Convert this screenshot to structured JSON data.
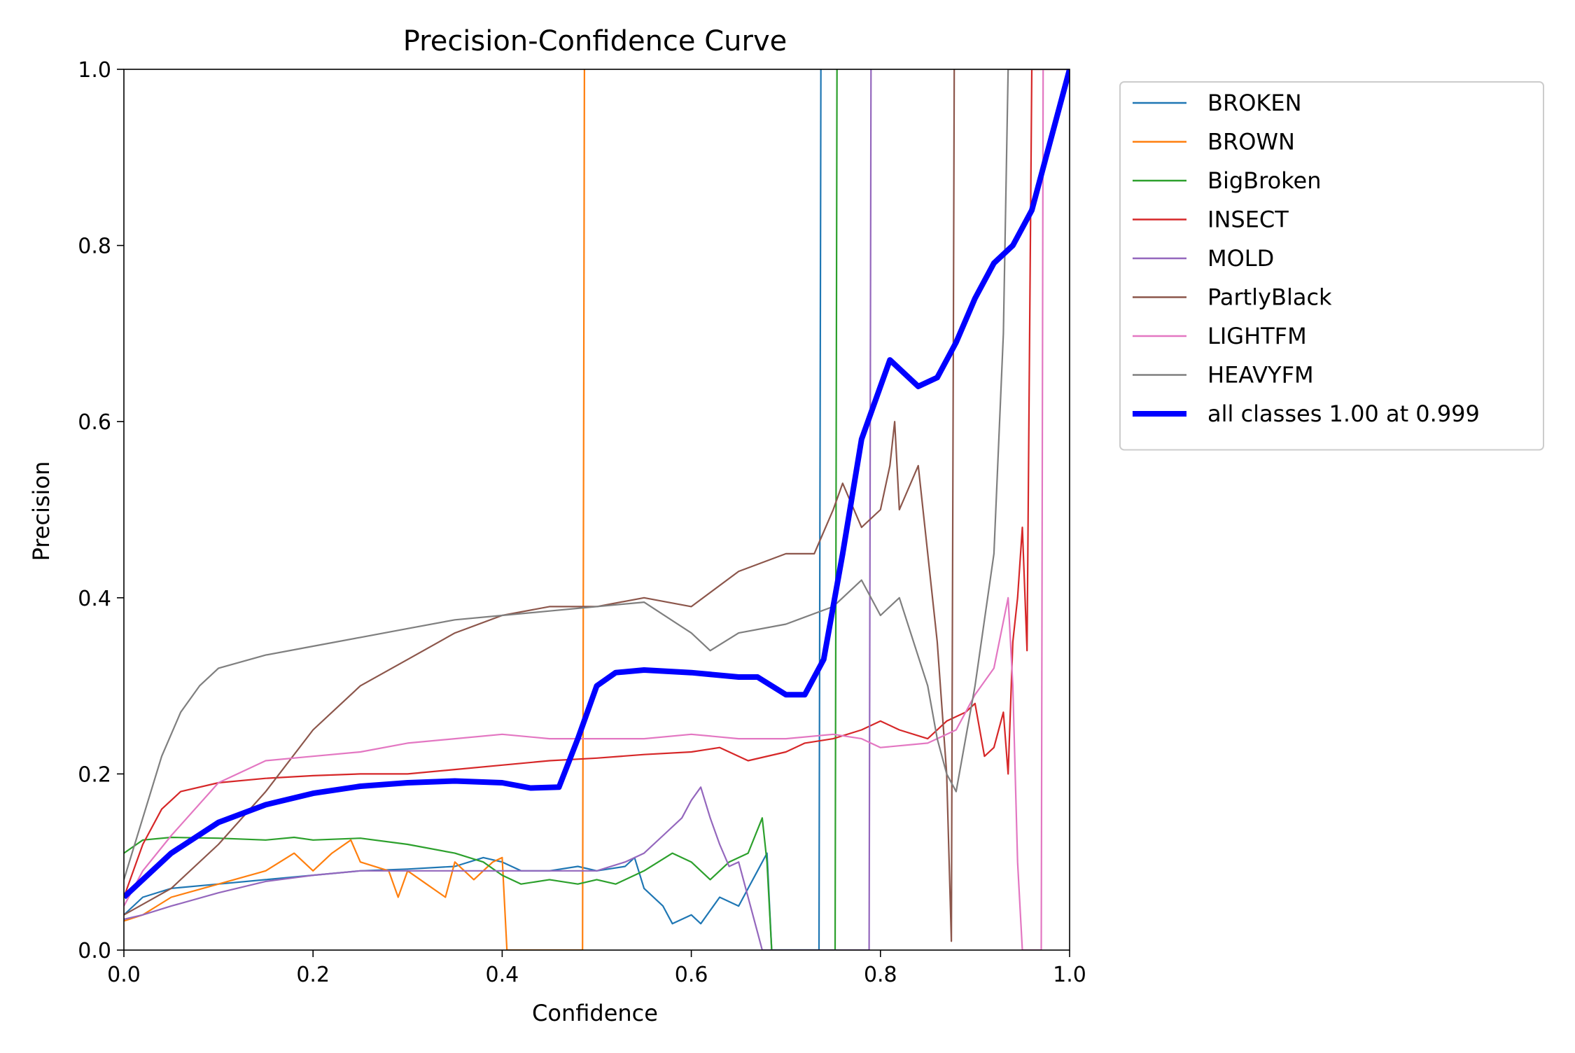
{
  "chart_data": {
    "type": "line",
    "title": "Precision-Confidence Curve",
    "xlabel": "Confidence",
    "ylabel": "Precision",
    "xlim": [
      0,
      1
    ],
    "ylim": [
      0,
      1
    ],
    "x_ticks": [
      "0.0",
      "0.2",
      "0.4",
      "0.6",
      "0.8",
      "1.0"
    ],
    "y_ticks": [
      "0.0",
      "0.2",
      "0.4",
      "0.6",
      "0.8",
      "1.0"
    ],
    "grid": false,
    "legend_position": "outside-upper-right",
    "series": [
      {
        "name": "BROKEN",
        "color": "#1f77b4",
        "line": "thin",
        "points": [
          [
            0,
            0.04
          ],
          [
            0.02,
            0.06
          ],
          [
            0.05,
            0.07
          ],
          [
            0.1,
            0.075
          ],
          [
            0.15,
            0.08
          ],
          [
            0.2,
            0.085
          ],
          [
            0.25,
            0.09
          ],
          [
            0.3,
            0.092
          ],
          [
            0.35,
            0.095
          ],
          [
            0.38,
            0.105
          ],
          [
            0.4,
            0.1
          ],
          [
            0.42,
            0.09
          ],
          [
            0.45,
            0.09
          ],
          [
            0.48,
            0.095
          ],
          [
            0.5,
            0.09
          ],
          [
            0.53,
            0.095
          ],
          [
            0.54,
            0.105
          ],
          [
            0.55,
            0.07
          ],
          [
            0.57,
            0.05
          ],
          [
            0.58,
            0.03
          ],
          [
            0.6,
            0.04
          ],
          [
            0.61,
            0.03
          ],
          [
            0.63,
            0.06
          ],
          [
            0.65,
            0.05
          ],
          [
            0.66,
            0.07
          ],
          [
            0.67,
            0.09
          ],
          [
            0.68,
            0.11
          ],
          [
            0.685,
            0
          ],
          [
            0.735,
            0
          ],
          [
            0.737,
            1
          ]
        ]
      },
      {
        "name": "BROWN",
        "color": "#ff7f0e",
        "line": "thin",
        "points": [
          [
            0,
            0.033
          ],
          [
            0.02,
            0.04
          ],
          [
            0.05,
            0.06
          ],
          [
            0.1,
            0.075
          ],
          [
            0.15,
            0.09
          ],
          [
            0.18,
            0.11
          ],
          [
            0.2,
            0.09
          ],
          [
            0.22,
            0.11
          ],
          [
            0.24,
            0.125
          ],
          [
            0.25,
            0.1
          ],
          [
            0.28,
            0.09
          ],
          [
            0.29,
            0.06
          ],
          [
            0.3,
            0.09
          ],
          [
            0.32,
            0.075
          ],
          [
            0.34,
            0.06
          ],
          [
            0.35,
            0.1
          ],
          [
            0.37,
            0.08
          ],
          [
            0.39,
            0.1
          ],
          [
            0.4,
            0.105
          ],
          [
            0.405,
            0
          ],
          [
            0.485,
            0
          ],
          [
            0.487,
            1
          ]
        ]
      },
      {
        "name": "BigBroken",
        "color": "#2ca02c",
        "line": "thin",
        "points": [
          [
            0,
            0.11
          ],
          [
            0.02,
            0.125
          ],
          [
            0.05,
            0.128
          ],
          [
            0.1,
            0.127
          ],
          [
            0.15,
            0.125
          ],
          [
            0.18,
            0.128
          ],
          [
            0.2,
            0.125
          ],
          [
            0.25,
            0.127
          ],
          [
            0.3,
            0.12
          ],
          [
            0.35,
            0.11
          ],
          [
            0.38,
            0.1
          ],
          [
            0.4,
            0.085
          ],
          [
            0.42,
            0.075
          ],
          [
            0.45,
            0.08
          ],
          [
            0.48,
            0.075
          ],
          [
            0.5,
            0.08
          ],
          [
            0.52,
            0.075
          ],
          [
            0.55,
            0.09
          ],
          [
            0.58,
            0.11
          ],
          [
            0.6,
            0.1
          ],
          [
            0.62,
            0.08
          ],
          [
            0.64,
            0.1
          ],
          [
            0.66,
            0.11
          ],
          [
            0.675,
            0.15
          ],
          [
            0.68,
            0.1
          ],
          [
            0.685,
            0
          ],
          [
            0.752,
            0
          ],
          [
            0.754,
            1
          ]
        ]
      },
      {
        "name": "INSECT",
        "color": "#d62728",
        "line": "thin",
        "points": [
          [
            0,
            0.06
          ],
          [
            0.02,
            0.12
          ],
          [
            0.04,
            0.16
          ],
          [
            0.06,
            0.18
          ],
          [
            0.1,
            0.19
          ],
          [
            0.15,
            0.195
          ],
          [
            0.2,
            0.198
          ],
          [
            0.25,
            0.2
          ],
          [
            0.3,
            0.2
          ],
          [
            0.35,
            0.205
          ],
          [
            0.4,
            0.21
          ],
          [
            0.45,
            0.215
          ],
          [
            0.5,
            0.218
          ],
          [
            0.55,
            0.222
          ],
          [
            0.6,
            0.225
          ],
          [
            0.63,
            0.23
          ],
          [
            0.66,
            0.215
          ],
          [
            0.7,
            0.225
          ],
          [
            0.72,
            0.235
          ],
          [
            0.75,
            0.24
          ],
          [
            0.78,
            0.25
          ],
          [
            0.8,
            0.26
          ],
          [
            0.82,
            0.25
          ],
          [
            0.85,
            0.24
          ],
          [
            0.87,
            0.26
          ],
          [
            0.89,
            0.27
          ],
          [
            0.9,
            0.28
          ],
          [
            0.91,
            0.22
          ],
          [
            0.92,
            0.23
          ],
          [
            0.93,
            0.27
          ],
          [
            0.935,
            0.2
          ],
          [
            0.94,
            0.35
          ],
          [
            0.945,
            0.4
          ],
          [
            0.95,
            0.48
          ],
          [
            0.955,
            0.34
          ],
          [
            0.96,
            1
          ],
          [
            1,
            1
          ]
        ]
      },
      {
        "name": "MOLD",
        "color": "#9467bd",
        "line": "thin",
        "points": [
          [
            0,
            0.035
          ],
          [
            0.02,
            0.04
          ],
          [
            0.05,
            0.05
          ],
          [
            0.1,
            0.065
          ],
          [
            0.15,
            0.078
          ],
          [
            0.2,
            0.085
          ],
          [
            0.25,
            0.09
          ],
          [
            0.3,
            0.09
          ],
          [
            0.35,
            0.09
          ],
          [
            0.4,
            0.09
          ],
          [
            0.45,
            0.09
          ],
          [
            0.5,
            0.09
          ],
          [
            0.53,
            0.1
          ],
          [
            0.55,
            0.11
          ],
          [
            0.57,
            0.13
          ],
          [
            0.59,
            0.15
          ],
          [
            0.6,
            0.17
          ],
          [
            0.61,
            0.185
          ],
          [
            0.62,
            0.15
          ],
          [
            0.63,
            0.12
          ],
          [
            0.64,
            0.095
          ],
          [
            0.65,
            0.1
          ],
          [
            0.66,
            0.06
          ],
          [
            0.67,
            0.02
          ],
          [
            0.675,
            0
          ],
          [
            0.788,
            0
          ],
          [
            0.79,
            1
          ]
        ]
      },
      {
        "name": "PartlyBlack",
        "color": "#8c564b",
        "line": "thin",
        "points": [
          [
            0,
            0.04
          ],
          [
            0.05,
            0.07
          ],
          [
            0.1,
            0.12
          ],
          [
            0.15,
            0.18
          ],
          [
            0.2,
            0.25
          ],
          [
            0.25,
            0.3
          ],
          [
            0.3,
            0.33
          ],
          [
            0.35,
            0.36
          ],
          [
            0.4,
            0.38
          ],
          [
            0.45,
            0.39
          ],
          [
            0.5,
            0.39
          ],
          [
            0.55,
            0.4
          ],
          [
            0.6,
            0.39
          ],
          [
            0.65,
            0.43
          ],
          [
            0.7,
            0.45
          ],
          [
            0.73,
            0.45
          ],
          [
            0.75,
            0.5
          ],
          [
            0.76,
            0.53
          ],
          [
            0.78,
            0.48
          ],
          [
            0.8,
            0.5
          ],
          [
            0.81,
            0.55
          ],
          [
            0.815,
            0.6
          ],
          [
            0.82,
            0.5
          ],
          [
            0.84,
            0.55
          ],
          [
            0.86,
            0.35
          ],
          [
            0.87,
            0.2
          ],
          [
            0.875,
            0.01
          ],
          [
            0.878,
            1
          ]
        ]
      },
      {
        "name": "LIGHTFM",
        "color": "#e377c2",
        "line": "thin",
        "points": [
          [
            0,
            0.05
          ],
          [
            0.02,
            0.09
          ],
          [
            0.05,
            0.13
          ],
          [
            0.1,
            0.19
          ],
          [
            0.15,
            0.215
          ],
          [
            0.2,
            0.22
          ],
          [
            0.25,
            0.225
          ],
          [
            0.3,
            0.235
          ],
          [
            0.35,
            0.24
          ],
          [
            0.4,
            0.245
          ],
          [
            0.45,
            0.24
          ],
          [
            0.5,
            0.24
          ],
          [
            0.55,
            0.24
          ],
          [
            0.6,
            0.245
          ],
          [
            0.65,
            0.24
          ],
          [
            0.7,
            0.24
          ],
          [
            0.75,
            0.245
          ],
          [
            0.78,
            0.24
          ],
          [
            0.8,
            0.23
          ],
          [
            0.85,
            0.235
          ],
          [
            0.88,
            0.25
          ],
          [
            0.9,
            0.29
          ],
          [
            0.92,
            0.32
          ],
          [
            0.935,
            0.4
          ],
          [
            0.94,
            0.3
          ],
          [
            0.945,
            0.1
          ],
          [
            0.95,
            0
          ],
          [
            0.97,
            0
          ],
          [
            0.972,
            1
          ]
        ]
      },
      {
        "name": "HEAVYFM",
        "color": "#7f7f7f",
        "line": "thin",
        "points": [
          [
            0,
            0.08
          ],
          [
            0.02,
            0.15
          ],
          [
            0.04,
            0.22
          ],
          [
            0.06,
            0.27
          ],
          [
            0.08,
            0.3
          ],
          [
            0.1,
            0.32
          ],
          [
            0.15,
            0.335
          ],
          [
            0.2,
            0.345
          ],
          [
            0.25,
            0.355
          ],
          [
            0.3,
            0.365
          ],
          [
            0.35,
            0.375
          ],
          [
            0.4,
            0.38
          ],
          [
            0.45,
            0.385
          ],
          [
            0.5,
            0.39
          ],
          [
            0.55,
            0.395
          ],
          [
            0.6,
            0.36
          ],
          [
            0.62,
            0.34
          ],
          [
            0.65,
            0.36
          ],
          [
            0.7,
            0.37
          ],
          [
            0.75,
            0.39
          ],
          [
            0.78,
            0.42
          ],
          [
            0.8,
            0.38
          ],
          [
            0.82,
            0.4
          ],
          [
            0.85,
            0.3
          ],
          [
            0.86,
            0.24
          ],
          [
            0.87,
            0.2
          ],
          [
            0.88,
            0.18
          ],
          [
            0.9,
            0.3
          ],
          [
            0.92,
            0.45
          ],
          [
            0.93,
            0.7
          ],
          [
            0.935,
            1
          ],
          [
            1,
            1
          ]
        ]
      },
      {
        "name": "all classes 1.00 at 0.999",
        "color": "#0000ff",
        "line": "thick",
        "points": [
          [
            0,
            0.06
          ],
          [
            0.05,
            0.11
          ],
          [
            0.1,
            0.145
          ],
          [
            0.15,
            0.165
          ],
          [
            0.2,
            0.178
          ],
          [
            0.25,
            0.186
          ],
          [
            0.3,
            0.19
          ],
          [
            0.35,
            0.192
          ],
          [
            0.4,
            0.19
          ],
          [
            0.43,
            0.184
          ],
          [
            0.46,
            0.185
          ],
          [
            0.48,
            0.24
          ],
          [
            0.5,
            0.3
          ],
          [
            0.52,
            0.315
          ],
          [
            0.55,
            0.318
          ],
          [
            0.6,
            0.315
          ],
          [
            0.65,
            0.31
          ],
          [
            0.67,
            0.31
          ],
          [
            0.7,
            0.29
          ],
          [
            0.72,
            0.29
          ],
          [
            0.74,
            0.33
          ],
          [
            0.76,
            0.45
          ],
          [
            0.78,
            0.58
          ],
          [
            0.8,
            0.64
          ],
          [
            0.81,
            0.67
          ],
          [
            0.82,
            0.66
          ],
          [
            0.84,
            0.64
          ],
          [
            0.86,
            0.65
          ],
          [
            0.88,
            0.69
          ],
          [
            0.9,
            0.74
          ],
          [
            0.92,
            0.78
          ],
          [
            0.94,
            0.8
          ],
          [
            0.96,
            0.84
          ],
          [
            0.98,
            0.92
          ],
          [
            1.0,
            1.0
          ]
        ]
      }
    ]
  }
}
